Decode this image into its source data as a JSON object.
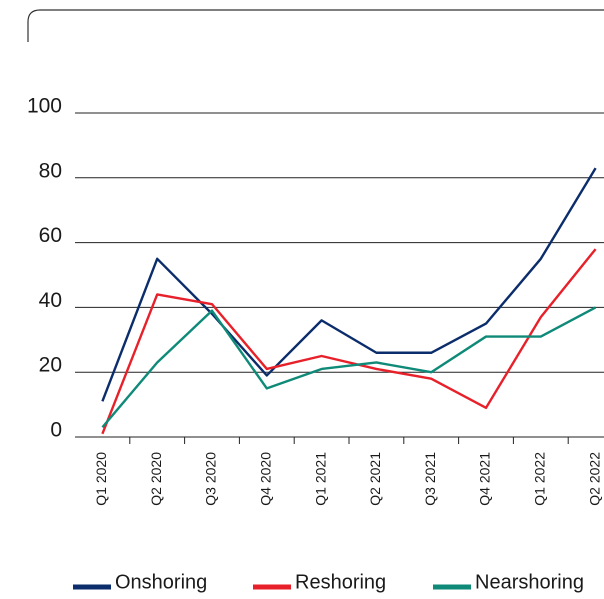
{
  "chart_data": {
    "type": "line",
    "categories": [
      "Q1 2020",
      "Q2 2020",
      "Q3 2020",
      "Q4 2020",
      "Q1 2021",
      "Q2 2021",
      "Q3 2021",
      "Q4 2021",
      "Q1 2022",
      "Q2 2022"
    ],
    "series": [
      {
        "name": "Onshoring",
        "color": "#0b2d6b",
        "values": [
          11,
          55,
          38,
          19,
          36,
          26,
          26,
          35,
          55,
          83
        ]
      },
      {
        "name": "Reshoring",
        "color": "#e8202a",
        "values": [
          1,
          44,
          41,
          21,
          25,
          21,
          18,
          9,
          37,
          58
        ]
      },
      {
        "name": "Nearshoring",
        "color": "#0f8a78",
        "values": [
          3,
          23,
          39,
          15,
          21,
          23,
          20,
          31,
          31,
          40
        ]
      }
    ],
    "ylim": [
      0,
      100
    ],
    "yticks": [
      0,
      20,
      40,
      60,
      80,
      100
    ],
    "grid": true,
    "legend": "bottom"
  }
}
